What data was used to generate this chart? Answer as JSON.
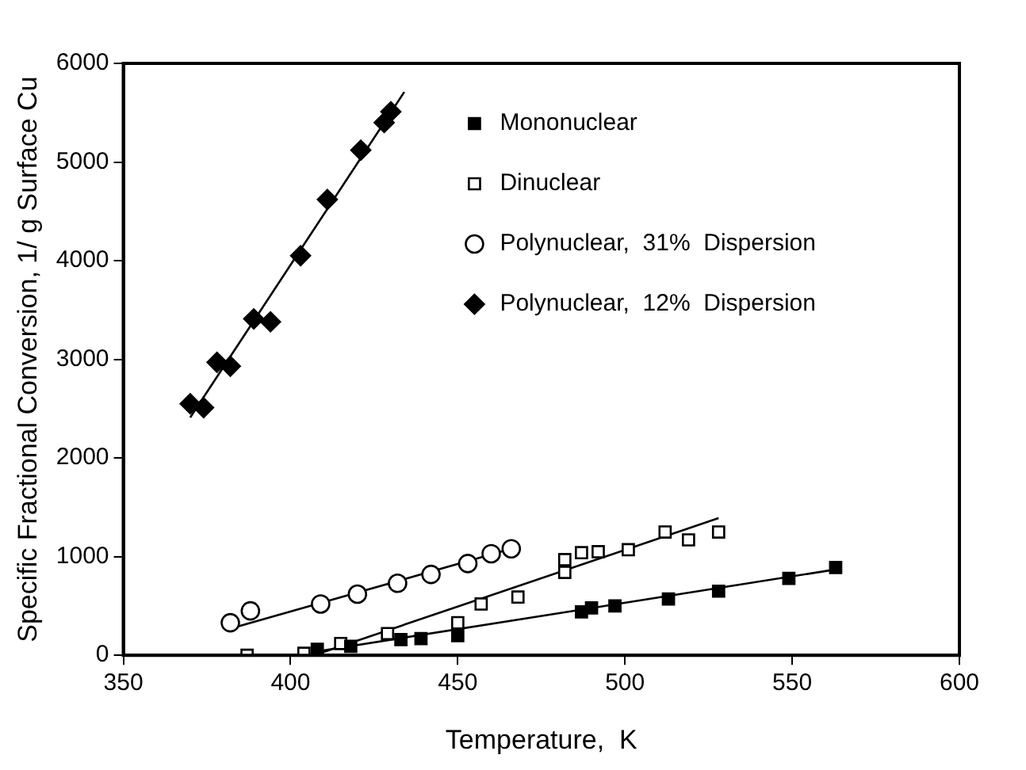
{
  "chart_data": {
    "type": "scatter",
    "xlabel": "Temperature,  K",
    "ylabel": "Specific Fractional Conversion, 1/ g Surface Cu",
    "xlim": [
      350,
      600
    ],
    "xticks": [
      350,
      400,
      450,
      500,
      550,
      600
    ],
    "ylim": [
      0,
      6000
    ],
    "yticks": [
      0,
      1000,
      2000,
      3000,
      4000,
      5000,
      6000
    ],
    "grid": false,
    "legend": "top right",
    "series": [
      {
        "name": "Mononuclear",
        "color": "#000000",
        "marker": "square",
        "x": [
          408,
          418,
          433,
          439,
          450,
          487,
          490,
          497,
          513,
          528,
          549,
          563
        ],
        "values": [
          60,
          90,
          160,
          170,
          200,
          440,
          480,
          500,
          570,
          650,
          780,
          890
        ]
      },
      {
        "name": "Dinuclear",
        "color": "#ffffff",
        "marker": "square",
        "x": [
          387,
          404,
          415,
          429,
          436,
          450,
          457,
          468,
          482,
          482,
          487,
          492,
          501,
          512,
          519,
          528
        ],
        "values": [
          0,
          20,
          120,
          220,
          null,
          330,
          520,
          590,
          840,
          970,
          1040,
          1050,
          1070,
          1250,
          1170,
          1250
        ]
      },
      {
        "name": "Polynuclear,  31%  Dispersion",
        "color": "#ffffff",
        "marker": "circle",
        "x": [
          382,
          388,
          409,
          420,
          432,
          442,
          453,
          460,
          466
        ],
        "values": [
          330,
          450,
          520,
          620,
          730,
          820,
          930,
          1030,
          1080
        ]
      },
      {
        "name": "Polynuclear,  12%  Dispersion",
        "color": "#000000",
        "marker": "diamond",
        "x": [
          370,
          374,
          378,
          382,
          389,
          394,
          403,
          411,
          421,
          428,
          430
        ],
        "values": [
          2550,
          2510,
          2970,
          2930,
          3410,
          3380,
          4050,
          4620,
          5120,
          5400,
          5510
        ]
      },
      {
        "type": "line",
        "color": "#000000",
        "marker": "none",
        "x": [
          408,
          563
        ],
        "values": [
          40,
          870
        ]
      },
      {
        "type": "line",
        "color": "#000000",
        "marker": "none",
        "x": [
          407,
          528
        ],
        "values": [
          0,
          1390
        ]
      },
      {
        "type": "line",
        "color": "#000000",
        "marker": "none",
        "x": [
          382,
          468
        ],
        "values": [
          270,
          1100
        ]
      },
      {
        "type": "line",
        "color": "#000000",
        "marker": "none",
        "x": [
          370,
          434
        ],
        "values": [
          2410,
          5710
        ]
      }
    ]
  }
}
